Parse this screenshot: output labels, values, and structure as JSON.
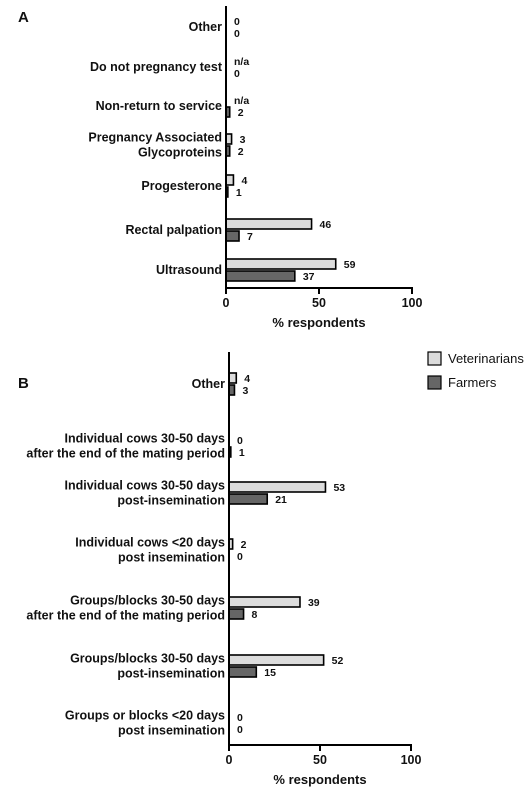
{
  "colors": {
    "veterinarians": "#dcdcdc",
    "farmers": "#666666",
    "outline": "#000000"
  },
  "legend": {
    "placement": "top-right",
    "entries": [
      {
        "key": "veterinarians",
        "label": "Veterinarians"
      },
      {
        "key": "farmers",
        "label": "Farmers"
      }
    ]
  },
  "chart_data": [
    {
      "type": "bar",
      "orientation": "horizontal",
      "panel_label": "A",
      "title": "",
      "xlabel": "% respondents",
      "ylabel": "",
      "xlim": [
        0,
        100
      ],
      "xticks": [
        0,
        50,
        100
      ],
      "grid": false,
      "categories": [
        [
          "Other"
        ],
        [
          "Do not pregnancy test"
        ],
        [
          "Non-return to service"
        ],
        [
          "Pregnancy Associated",
          "Glycoproteins"
        ],
        [
          "Progesterone"
        ],
        [
          "Rectal palpation"
        ],
        [
          "Ultrasound"
        ]
      ],
      "series": [
        {
          "key": "veterinarians",
          "name": "Veterinarians",
          "values": [
            0,
            null,
            null,
            3,
            4,
            46,
            59
          ],
          "labels": [
            "0",
            "n/a",
            "n/a",
            "3",
            "4",
            "46",
            "59"
          ]
        },
        {
          "key": "farmers",
          "name": "Farmers",
          "values": [
            0,
            0,
            2,
            2,
            1,
            7,
            37
          ],
          "labels": [
            "0",
            "0",
            "2",
            "2",
            "1",
            "7",
            "37"
          ]
        }
      ]
    },
    {
      "type": "bar",
      "orientation": "horizontal",
      "panel_label": "B",
      "title": "",
      "xlabel": "% respondents",
      "ylabel": "",
      "xlim": [
        0,
        100
      ],
      "xticks": [
        0,
        50,
        100
      ],
      "grid": false,
      "categories": [
        [
          "Other"
        ],
        [
          "Individual cows 30-50 days",
          "after the end of the mating period"
        ],
        [
          "Individual cows 30-50 days",
          "post-insemination"
        ],
        [
          "Individual cows <20 days",
          "post insemination"
        ],
        [
          "Groups/blocks 30-50 days",
          "after the end of the mating period"
        ],
        [
          "Groups/blocks 30-50 days",
          "post-insemination"
        ],
        [
          "Groups or blocks <20 days",
          "post insemination"
        ]
      ],
      "series": [
        {
          "key": "veterinarians",
          "name": "Veterinarians",
          "values": [
            4,
            0,
            53,
            2,
            39,
            52,
            0
          ],
          "labels": [
            "4",
            "0",
            "53",
            "2",
            "39",
            "52",
            "0"
          ]
        },
        {
          "key": "farmers",
          "name": "Farmers",
          "values": [
            3,
            1,
            21,
            0,
            8,
            15,
            0
          ],
          "labels": [
            "3",
            "1",
            "21",
            "0",
            "8",
            "15",
            "0"
          ]
        }
      ]
    }
  ]
}
